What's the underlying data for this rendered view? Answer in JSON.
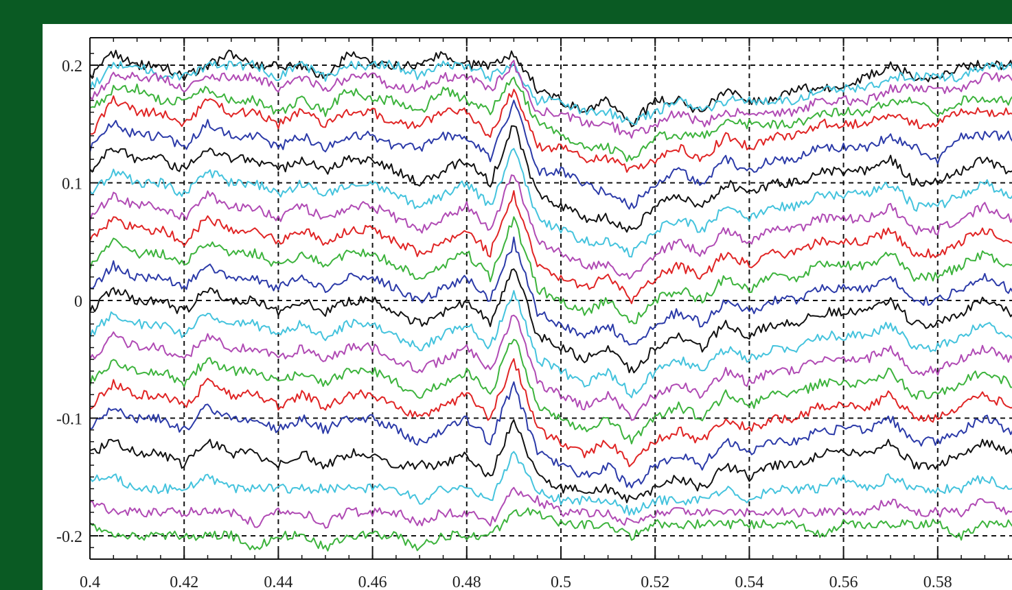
{
  "colors": {
    "frame": "#0a5a23",
    "panel": "#ffffff",
    "grid": "#111111",
    "series_palette": [
      "#111111",
      "#2b3aa8",
      "#e02424",
      "#3cb33c",
      "#b04ab4",
      "#44c3dd"
    ]
  },
  "chart_data": {
    "type": "line",
    "title": "",
    "xlabel": "",
    "ylabel": "",
    "xlim": [
      0.4,
      0.6
    ],
    "ylim": [
      -0.215,
      0.22
    ],
    "grid": true,
    "grid_style": "dashed",
    "legend": "none",
    "x_ticks": [
      {
        "value": 0.4,
        "label": "0.4"
      },
      {
        "value": 0.42,
        "label": "0.42"
      },
      {
        "value": 0.44,
        "label": "0.44"
      },
      {
        "value": 0.46,
        "label": "0.46"
      },
      {
        "value": 0.48,
        "label": "0.48"
      },
      {
        "value": 0.5,
        "label": "0.5"
      },
      {
        "value": 0.52,
        "label": "0.52"
      },
      {
        "value": 0.54,
        "label": "0.54"
      },
      {
        "value": 0.56,
        "label": "0.56"
      },
      {
        "value": 0.58,
        "label": "0.58"
      }
    ],
    "y_ticks": [
      {
        "value": 0.2,
        "label": "0.2"
      },
      {
        "value": 0.1,
        "label": "0.1"
      },
      {
        "value": 0.0,
        "label": "0"
      },
      {
        "value": -0.1,
        "label": "-0.1"
      },
      {
        "value": -0.2,
        "label": "-0.2"
      }
    ],
    "x": [
      0.4,
      0.405,
      0.41,
      0.415,
      0.42,
      0.425,
      0.43,
      0.435,
      0.44,
      0.445,
      0.45,
      0.455,
      0.46,
      0.465,
      0.47,
      0.475,
      0.48,
      0.485,
      0.49,
      0.495,
      0.5,
      0.505,
      0.51,
      0.515,
      0.52,
      0.525,
      0.53,
      0.535,
      0.54,
      0.545,
      0.55,
      0.555,
      0.56,
      0.565,
      0.57,
      0.575,
      0.58,
      0.585,
      0.59,
      0.595,
      0.6
    ],
    "series": [
      {
        "color": "#111111",
        "values": [
          0.19,
          0.21,
          0.2,
          0.2,
          0.19,
          0.2,
          0.21,
          0.2,
          0.2,
          0.2,
          0.19,
          0.21,
          0.2,
          0.2,
          0.2,
          0.21,
          0.2,
          0.2,
          0.21,
          0.18,
          0.17,
          0.16,
          0.17,
          0.15,
          0.17,
          0.17,
          0.16,
          0.18,
          0.17,
          0.17,
          0.18,
          0.18,
          0.18,
          0.19,
          0.2,
          0.19,
          0.19,
          0.2,
          0.2,
          0.2,
          0.2
        ]
      },
      {
        "color": "#44c3dd",
        "values": [
          0.18,
          0.2,
          0.2,
          0.19,
          0.19,
          0.2,
          0.2,
          0.2,
          0.19,
          0.2,
          0.19,
          0.2,
          0.2,
          0.2,
          0.19,
          0.2,
          0.2,
          0.19,
          0.2,
          0.17,
          0.17,
          0.16,
          0.16,
          0.15,
          0.16,
          0.17,
          0.16,
          0.17,
          0.17,
          0.17,
          0.17,
          0.18,
          0.18,
          0.18,
          0.19,
          0.19,
          0.19,
          0.19,
          0.2,
          0.2,
          0.19
        ]
      },
      {
        "color": "#b04ab4",
        "values": [
          0.17,
          0.19,
          0.19,
          0.19,
          0.18,
          0.19,
          0.19,
          0.19,
          0.18,
          0.19,
          0.18,
          0.19,
          0.19,
          0.18,
          0.18,
          0.19,
          0.19,
          0.18,
          0.2,
          0.16,
          0.16,
          0.15,
          0.15,
          0.14,
          0.15,
          0.16,
          0.15,
          0.16,
          0.16,
          0.16,
          0.16,
          0.17,
          0.17,
          0.17,
          0.18,
          0.18,
          0.18,
          0.18,
          0.19,
          0.19,
          0.18
        ]
      },
      {
        "color": "#3cb33c",
        "values": [
          0.16,
          0.18,
          0.18,
          0.17,
          0.17,
          0.18,
          0.17,
          0.17,
          0.16,
          0.17,
          0.16,
          0.18,
          0.17,
          0.17,
          0.16,
          0.18,
          0.17,
          0.16,
          0.19,
          0.15,
          0.14,
          0.13,
          0.13,
          0.12,
          0.14,
          0.14,
          0.14,
          0.15,
          0.15,
          0.15,
          0.15,
          0.16,
          0.16,
          0.16,
          0.17,
          0.17,
          0.16,
          0.17,
          0.17,
          0.17,
          0.17
        ]
      },
      {
        "color": "#e02424",
        "values": [
          0.14,
          0.17,
          0.16,
          0.16,
          0.15,
          0.17,
          0.16,
          0.16,
          0.15,
          0.16,
          0.15,
          0.16,
          0.16,
          0.15,
          0.15,
          0.16,
          0.16,
          0.14,
          0.18,
          0.13,
          0.13,
          0.12,
          0.12,
          0.11,
          0.12,
          0.13,
          0.12,
          0.14,
          0.13,
          0.14,
          0.14,
          0.15,
          0.15,
          0.15,
          0.16,
          0.15,
          0.15,
          0.16,
          0.16,
          0.16,
          0.15
        ]
      },
      {
        "color": "#2b3aa8",
        "values": [
          0.13,
          0.15,
          0.14,
          0.14,
          0.13,
          0.15,
          0.14,
          0.14,
          0.13,
          0.14,
          0.13,
          0.14,
          0.14,
          0.13,
          0.13,
          0.14,
          0.14,
          0.12,
          0.17,
          0.11,
          0.11,
          0.1,
          0.09,
          0.08,
          0.1,
          0.11,
          0.1,
          0.12,
          0.11,
          0.12,
          0.12,
          0.13,
          0.13,
          0.13,
          0.14,
          0.13,
          0.12,
          0.14,
          0.14,
          0.14,
          0.13
        ]
      },
      {
        "color": "#111111",
        "values": [
          0.11,
          0.13,
          0.12,
          0.12,
          0.11,
          0.13,
          0.12,
          0.12,
          0.11,
          0.12,
          0.11,
          0.12,
          0.12,
          0.11,
          0.1,
          0.11,
          0.12,
          0.1,
          0.15,
          0.09,
          0.08,
          0.07,
          0.07,
          0.06,
          0.08,
          0.09,
          0.08,
          0.1,
          0.09,
          0.1,
          0.1,
          0.11,
          0.11,
          0.11,
          0.12,
          0.1,
          0.1,
          0.11,
          0.12,
          0.11,
          0.11
        ]
      },
      {
        "color": "#44c3dd",
        "values": [
          0.09,
          0.11,
          0.1,
          0.1,
          0.09,
          0.11,
          0.1,
          0.1,
          0.09,
          0.1,
          0.09,
          0.1,
          0.1,
          0.09,
          0.08,
          0.09,
          0.1,
          0.08,
          0.13,
          0.07,
          0.06,
          0.05,
          0.05,
          0.04,
          0.06,
          0.07,
          0.06,
          0.08,
          0.07,
          0.08,
          0.08,
          0.09,
          0.09,
          0.09,
          0.1,
          0.08,
          0.08,
          0.09,
          0.1,
          0.09,
          0.09
        ]
      },
      {
        "color": "#b04ab4",
        "values": [
          0.07,
          0.09,
          0.08,
          0.08,
          0.07,
          0.09,
          0.08,
          0.08,
          0.07,
          0.08,
          0.07,
          0.08,
          0.08,
          0.07,
          0.06,
          0.07,
          0.08,
          0.06,
          0.11,
          0.05,
          0.04,
          0.03,
          0.03,
          0.02,
          0.04,
          0.05,
          0.04,
          0.06,
          0.05,
          0.06,
          0.06,
          0.07,
          0.07,
          0.07,
          0.08,
          0.06,
          0.06,
          0.07,
          0.08,
          0.07,
          0.07
        ]
      },
      {
        "color": "#e02424",
        "values": [
          0.05,
          0.07,
          0.06,
          0.06,
          0.05,
          0.07,
          0.06,
          0.06,
          0.05,
          0.06,
          0.05,
          0.06,
          0.06,
          0.05,
          0.04,
          0.05,
          0.06,
          0.04,
          0.09,
          0.03,
          0.02,
          0.01,
          0.02,
          0.0,
          0.02,
          0.03,
          0.02,
          0.04,
          0.03,
          0.04,
          0.04,
          0.05,
          0.05,
          0.05,
          0.06,
          0.04,
          0.04,
          0.05,
          0.06,
          0.05,
          0.05
        ]
      },
      {
        "color": "#3cb33c",
        "values": [
          0.03,
          0.05,
          0.04,
          0.04,
          0.03,
          0.05,
          0.04,
          0.04,
          0.03,
          0.04,
          0.03,
          0.04,
          0.04,
          0.03,
          0.02,
          0.03,
          0.04,
          0.02,
          0.07,
          0.01,
          0.0,
          -0.01,
          0.0,
          -0.02,
          0.0,
          0.01,
          0.0,
          0.02,
          0.01,
          0.02,
          0.02,
          0.03,
          0.03,
          0.03,
          0.04,
          0.02,
          0.02,
          0.03,
          0.04,
          0.03,
          0.03
        ]
      },
      {
        "color": "#2b3aa8",
        "values": [
          0.01,
          0.03,
          0.02,
          0.02,
          0.01,
          0.03,
          0.02,
          0.02,
          0.01,
          0.02,
          0.01,
          0.02,
          0.02,
          0.01,
          0.0,
          0.01,
          0.02,
          0.0,
          0.05,
          -0.01,
          -0.02,
          -0.03,
          -0.02,
          -0.04,
          -0.02,
          -0.01,
          -0.02,
          0.0,
          -0.01,
          0.0,
          0.0,
          0.01,
          0.01,
          0.01,
          0.02,
          0.0,
          0.0,
          0.01,
          0.02,
          0.01,
          0.01
        ]
      },
      {
        "color": "#111111",
        "values": [
          -0.01,
          0.01,
          0.0,
          0.0,
          -0.01,
          0.01,
          0.0,
          0.0,
          -0.01,
          0.0,
          -0.01,
          0.0,
          0.0,
          -0.01,
          -0.02,
          -0.01,
          0.0,
          -0.02,
          0.03,
          -0.03,
          -0.04,
          -0.05,
          -0.04,
          -0.06,
          -0.04,
          -0.03,
          -0.04,
          -0.02,
          -0.03,
          -0.02,
          -0.02,
          -0.01,
          -0.01,
          -0.01,
          0.0,
          -0.02,
          -0.02,
          -0.01,
          0.0,
          -0.01,
          -0.01
        ]
      },
      {
        "color": "#44c3dd",
        "values": [
          -0.03,
          -0.01,
          -0.02,
          -0.02,
          -0.03,
          -0.01,
          -0.02,
          -0.02,
          -0.03,
          -0.02,
          -0.03,
          -0.02,
          -0.02,
          -0.03,
          -0.04,
          -0.03,
          -0.02,
          -0.04,
          0.01,
          -0.05,
          -0.06,
          -0.07,
          -0.06,
          -0.08,
          -0.06,
          -0.05,
          -0.06,
          -0.04,
          -0.05,
          -0.04,
          -0.04,
          -0.03,
          -0.03,
          -0.03,
          -0.02,
          -0.04,
          -0.04,
          -0.03,
          -0.02,
          -0.03,
          -0.03
        ]
      },
      {
        "color": "#b04ab4",
        "values": [
          -0.05,
          -0.03,
          -0.04,
          -0.04,
          -0.05,
          -0.03,
          -0.04,
          -0.04,
          -0.05,
          -0.04,
          -0.05,
          -0.04,
          -0.04,
          -0.05,
          -0.06,
          -0.05,
          -0.04,
          -0.06,
          -0.01,
          -0.07,
          -0.08,
          -0.09,
          -0.08,
          -0.1,
          -0.08,
          -0.07,
          -0.08,
          -0.06,
          -0.07,
          -0.06,
          -0.06,
          -0.05,
          -0.05,
          -0.05,
          -0.04,
          -0.06,
          -0.06,
          -0.05,
          -0.04,
          -0.05,
          -0.05
        ]
      },
      {
        "color": "#3cb33c",
        "values": [
          -0.07,
          -0.05,
          -0.06,
          -0.06,
          -0.07,
          -0.05,
          -0.06,
          -0.06,
          -0.07,
          -0.06,
          -0.07,
          -0.06,
          -0.06,
          -0.07,
          -0.08,
          -0.07,
          -0.06,
          -0.08,
          -0.03,
          -0.09,
          -0.1,
          -0.11,
          -0.1,
          -0.12,
          -0.1,
          -0.09,
          -0.1,
          -0.08,
          -0.09,
          -0.08,
          -0.08,
          -0.07,
          -0.07,
          -0.07,
          -0.06,
          -0.08,
          -0.08,
          -0.07,
          -0.06,
          -0.07,
          -0.07
        ]
      },
      {
        "color": "#e02424",
        "values": [
          -0.09,
          -0.07,
          -0.08,
          -0.08,
          -0.09,
          -0.07,
          -0.08,
          -0.08,
          -0.09,
          -0.08,
          -0.09,
          -0.08,
          -0.08,
          -0.09,
          -0.1,
          -0.09,
          -0.08,
          -0.1,
          -0.05,
          -0.11,
          -0.12,
          -0.13,
          -0.12,
          -0.14,
          -0.12,
          -0.11,
          -0.12,
          -0.1,
          -0.11,
          -0.1,
          -0.1,
          -0.09,
          -0.09,
          -0.09,
          -0.08,
          -0.1,
          -0.1,
          -0.09,
          -0.08,
          -0.09,
          -0.09
        ]
      },
      {
        "color": "#2b3aa8",
        "values": [
          -0.11,
          -0.09,
          -0.1,
          -0.1,
          -0.11,
          -0.09,
          -0.1,
          -0.1,
          -0.11,
          -0.1,
          -0.11,
          -0.1,
          -0.1,
          -0.11,
          -0.12,
          -0.11,
          -0.1,
          -0.12,
          -0.07,
          -0.13,
          -0.14,
          -0.15,
          -0.14,
          -0.16,
          -0.14,
          -0.13,
          -0.14,
          -0.12,
          -0.13,
          -0.12,
          -0.12,
          -0.11,
          -0.11,
          -0.11,
          -0.1,
          -0.12,
          -0.12,
          -0.11,
          -0.1,
          -0.11,
          -0.11
        ]
      },
      {
        "color": "#111111",
        "values": [
          -0.13,
          -0.12,
          -0.13,
          -0.13,
          -0.14,
          -0.12,
          -0.13,
          -0.13,
          -0.14,
          -0.13,
          -0.14,
          -0.13,
          -0.13,
          -0.14,
          -0.14,
          -0.14,
          -0.13,
          -0.15,
          -0.1,
          -0.15,
          -0.16,
          -0.16,
          -0.16,
          -0.17,
          -0.16,
          -0.15,
          -0.16,
          -0.14,
          -0.15,
          -0.14,
          -0.14,
          -0.13,
          -0.13,
          -0.13,
          -0.12,
          -0.14,
          -0.14,
          -0.13,
          -0.12,
          -0.13,
          -0.13
        ]
      },
      {
        "color": "#44c3dd",
        "values": [
          -0.15,
          -0.15,
          -0.16,
          -0.16,
          -0.16,
          -0.15,
          -0.16,
          -0.16,
          -0.16,
          -0.16,
          -0.16,
          -0.16,
          -0.16,
          -0.16,
          -0.17,
          -0.16,
          -0.16,
          -0.17,
          -0.13,
          -0.16,
          -0.17,
          -0.17,
          -0.17,
          -0.18,
          -0.17,
          -0.17,
          -0.17,
          -0.16,
          -0.17,
          -0.16,
          -0.16,
          -0.16,
          -0.15,
          -0.16,
          -0.15,
          -0.16,
          -0.16,
          -0.16,
          -0.15,
          -0.16,
          -0.16
        ]
      },
      {
        "color": "#b04ab4",
        "values": [
          -0.17,
          -0.18,
          -0.18,
          -0.18,
          -0.18,
          -0.18,
          -0.18,
          -0.19,
          -0.18,
          -0.18,
          -0.19,
          -0.18,
          -0.18,
          -0.18,
          -0.19,
          -0.18,
          -0.18,
          -0.19,
          -0.16,
          -0.17,
          -0.18,
          -0.18,
          -0.18,
          -0.19,
          -0.18,
          -0.18,
          -0.18,
          -0.18,
          -0.18,
          -0.18,
          -0.18,
          -0.18,
          -0.18,
          -0.18,
          -0.17,
          -0.18,
          -0.18,
          -0.18,
          -0.17,
          -0.18,
          -0.18
        ]
      },
      {
        "color": "#3cb33c",
        "values": [
          -0.19,
          -0.2,
          -0.2,
          -0.2,
          -0.2,
          -0.2,
          -0.2,
          -0.21,
          -0.2,
          -0.2,
          -0.21,
          -0.2,
          -0.2,
          -0.2,
          -0.21,
          -0.2,
          -0.2,
          -0.2,
          -0.18,
          -0.18,
          -0.19,
          -0.19,
          -0.19,
          -0.2,
          -0.19,
          -0.19,
          -0.19,
          -0.19,
          -0.19,
          -0.19,
          -0.19,
          -0.2,
          -0.19,
          -0.19,
          -0.19,
          -0.19,
          -0.19,
          -0.2,
          -0.19,
          -0.19,
          -0.19
        ]
      }
    ]
  }
}
